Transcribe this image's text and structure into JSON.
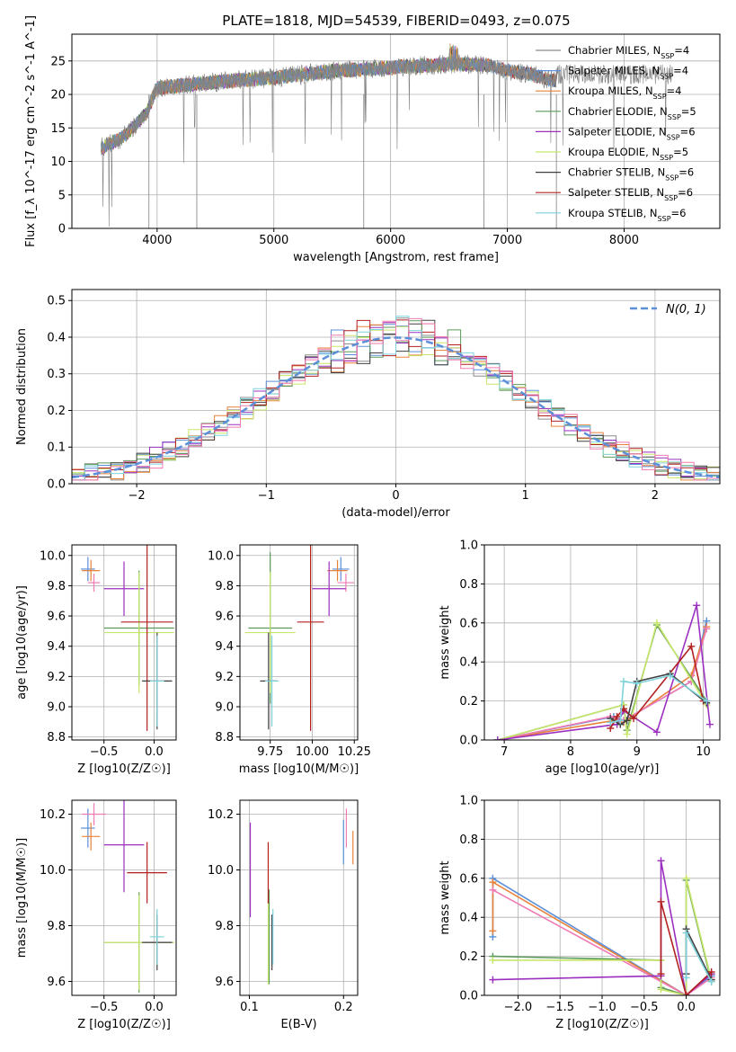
{
  "title": "PLATE=1818, MJD=54539, FIBERID=0493, z=0.075",
  "chart_data": [
    {
      "id": "spectrum",
      "type": "line",
      "xlabel": "wavelength [Angstrom, rest frame]",
      "ylabel": "Flux [f_λ 10^-17 erg cm^-2 s^-1 A^-1]",
      "xlim": [
        3270,
        8820
      ],
      "ylim": [
        0,
        29
      ],
      "xticks": [
        4000,
        5000,
        6000,
        7000,
        8000
      ],
      "yticks": [
        0,
        5,
        10,
        15,
        20,
        25
      ],
      "grid": true,
      "legend_position": "right",
      "legend": [
        {
          "label": "Chabrier MILES, N_SSP=4",
          "color": "#8c8c8c"
        },
        {
          "label": "Salpeter MILES, N_SSP=4",
          "color": "#5b8fd8"
        },
        {
          "label": "Kroupa MILES, N_SSP=4",
          "color": "#e8823a"
        },
        {
          "label": "Chabrier ELODIE, N_SSP=5",
          "color": "#5a9a5a"
        },
        {
          "label": "Salpeter ELODIE, N_SSP=6",
          "color": "#9b30c0"
        },
        {
          "label": "Kroupa ELODIE, N_SSP=5",
          "color": "#c8e66a"
        },
        {
          "label": "Chabrier STELIB, N_SSP=6",
          "color": "#404040"
        },
        {
          "label": "Salpeter STELIB, N_SSP=6",
          "color": "#b22020"
        },
        {
          "label": "Kroupa STELIB, N_SSP=6",
          "color": "#7fd2dc"
        }
      ],
      "spectrum_trend": {
        "x": [
          3520,
          3700,
          3900,
          4000,
          4300,
          4600,
          5000,
          5500,
          6000,
          6500,
          6800,
          7000,
          7200,
          7400
        ],
        "y": [
          12,
          13.5,
          17,
          21,
          21.5,
          22,
          22.5,
          23.5,
          24,
          24.5,
          24.5,
          23.5,
          23,
          22
        ]
      }
    },
    {
      "id": "residuals",
      "type": "line",
      "xlabel": "(data-model)/error",
      "ylabel": "Normed distribution",
      "xlim": [
        -2.5,
        2.5
      ],
      "ylim": [
        0,
        0.53
      ],
      "xticks": [
        -2,
        -1,
        0,
        1,
        2
      ],
      "yticks": [
        0.0,
        0.1,
        0.2,
        0.3,
        0.4,
        0.5
      ],
      "grid": true,
      "legend_position": "top-right",
      "legend_label": "N(0, 1)",
      "gaussian_color": "#5b8fd8"
    },
    {
      "id": "age-vs-z",
      "type": "scatter",
      "xlabel": "Z [log10(Z/Z☉)]",
      "ylabel": "age  [log10(age/yr)]",
      "xlim": [
        -0.82,
        0.22
      ],
      "ylim": [
        8.78,
        10.07
      ],
      "xticks": [
        -0.5,
        0.0
      ],
      "yticks": [
        8.8,
        9.0,
        9.2,
        9.4,
        9.6,
        9.8,
        10.0
      ],
      "grid": true,
      "points": [
        {
          "x": -0.66,
          "y": 9.91,
          "xerr": 0.07,
          "yerr": 0.08,
          "color": "#5b8fd8"
        },
        {
          "x": -0.63,
          "y": 9.9,
          "xerr": 0.09,
          "yerr": 0.07,
          "color": "#e8823a"
        },
        {
          "x": -0.6,
          "y": 9.82,
          "xerr": 0.06,
          "yerr": 0.06,
          "color": "#f07ab4"
        },
        {
          "x": -0.3,
          "y": 9.78,
          "xerr": 0.2,
          "yerr": 0.18,
          "color": "#9b30c0"
        },
        {
          "x": -0.15,
          "y": 9.52,
          "xerr": 0.35,
          "yerr": 0.38,
          "color": "#5a9a5a"
        },
        {
          "x": -0.15,
          "y": 9.49,
          "xerr": 0.35,
          "yerr": 0.4,
          "color": "#c8e66a"
        },
        {
          "x": -0.07,
          "y": 9.56,
          "xerr": 0.26,
          "yerr": 0.72,
          "color": "#b22020"
        },
        {
          "x": 0.03,
          "y": 9.17,
          "xerr": 0.15,
          "yerr": 0.32,
          "color": "#404040"
        },
        {
          "x": 0.03,
          "y": 9.17,
          "xerr": 0.07,
          "yerr": 0.3,
          "color": "#7fd2dc"
        }
      ]
    },
    {
      "id": "age-vs-mass",
      "type": "scatter",
      "xlabel": "mass [log10(M/M☉)]",
      "ylabel": "",
      "xlim": [
        9.57,
        10.27
      ],
      "ylim": [
        8.78,
        10.07
      ],
      "xticks": [
        9.75,
        10.0,
        10.25
      ],
      "yticks": [
        8.8,
        9.0,
        9.2,
        9.4,
        9.6,
        9.8,
        10.0
      ],
      "grid": true,
      "points": [
        {
          "x": 10.17,
          "y": 9.91,
          "xerr": 0.05,
          "yerr": 0.08,
          "color": "#5b8fd8"
        },
        {
          "x": 10.15,
          "y": 9.9,
          "xerr": 0.06,
          "yerr": 0.07,
          "color": "#e8823a"
        },
        {
          "x": 10.2,
          "y": 9.82,
          "xerr": 0.05,
          "yerr": 0.06,
          "color": "#f07ab4"
        },
        {
          "x": 10.1,
          "y": 9.78,
          "xerr": 0.1,
          "yerr": 0.18,
          "color": "#9b30c0"
        },
        {
          "x": 9.75,
          "y": 9.52,
          "xerr": 0.13,
          "yerr": 0.5,
          "color": "#5a9a5a"
        },
        {
          "x": 9.75,
          "y": 9.49,
          "xerr": 0.15,
          "yerr": 0.4,
          "color": "#c8e66a"
        },
        {
          "x": 9.99,
          "y": 9.56,
          "xerr": 0.08,
          "yerr": 0.72,
          "color": "#b22020"
        },
        {
          "x": 9.74,
          "y": 9.17,
          "xerr": 0.05,
          "yerr": 0.32,
          "color": "#404040"
        },
        {
          "x": 9.76,
          "y": 9.17,
          "xerr": 0.04,
          "yerr": 0.3,
          "color": "#7fd2dc"
        }
      ]
    },
    {
      "id": "weight-vs-age",
      "type": "line",
      "xlabel": "age  [log10(age/yr)]",
      "ylabel": "mass weight",
      "xlim": [
        6.7,
        10.25
      ],
      "ylim": [
        0,
        1.0
      ],
      "xticks": [
        7,
        8,
        9,
        10
      ],
      "yticks": [
        0.0,
        0.2,
        0.4,
        0.6,
        0.8,
        1.0
      ],
      "grid": true,
      "series": [
        {
          "color": "#5b8fd8",
          "x": [
            6.9,
            8.65,
            8.8,
            9.82,
            10.05
          ],
          "y": [
            0.0,
            0.12,
            0.1,
            0.3,
            0.61
          ]
        },
        {
          "color": "#e8823a",
          "x": [
            6.9,
            8.65,
            8.8,
            9.82,
            10.05
          ],
          "y": [
            0.0,
            0.1,
            0.09,
            0.33,
            0.58
          ]
        },
        {
          "color": "#f07ab4",
          "x": [
            6.9,
            8.6,
            8.8,
            9.82,
            10.05
          ],
          "y": [
            0.0,
            0.12,
            0.1,
            0.3,
            0.57
          ]
        },
        {
          "color": "#5a9a5a",
          "x": [
            6.9,
            8.8,
            8.85,
            9.3,
            10.05
          ],
          "y": [
            0.0,
            0.18,
            0.05,
            0.59,
            0.2
          ]
        },
        {
          "color": "#c8e66a",
          "x": [
            6.9,
            8.8,
            8.85,
            9.3,
            10.05
          ],
          "y": [
            0.0,
            0.18,
            0.03,
            0.6,
            0.18
          ]
        },
        {
          "color": "#9b30c0",
          "x": [
            6.9,
            8.7,
            8.8,
            9.3,
            9.9,
            10.1
          ],
          "y": [
            0.0,
            0.08,
            0.15,
            0.04,
            0.69,
            0.08
          ]
        },
        {
          "color": "#b22020",
          "x": [
            8.6,
            8.7,
            8.8,
            8.95,
            9.82,
            10.0
          ],
          "y": [
            0.06,
            0.12,
            0.16,
            0.11,
            0.48,
            0.2
          ]
        },
        {
          "color": "#404040",
          "x": [
            8.6,
            8.75,
            8.85,
            9.0,
            9.5,
            10.05
          ],
          "y": [
            0.11,
            0.08,
            0.1,
            0.3,
            0.34,
            0.19
          ]
        },
        {
          "color": "#7fd2dc",
          "x": [
            8.6,
            8.75,
            8.8,
            9.0,
            9.5,
            10.05
          ],
          "y": [
            0.09,
            0.1,
            0.3,
            0.29,
            0.33,
            0.2
          ]
        }
      ]
    },
    {
      "id": "mass-vs-z",
      "type": "scatter",
      "xlabel": "Z [log10(Z/Z☉)]",
      "ylabel": "mass [log10(M/M☉)]",
      "xlim": [
        -0.82,
        0.22
      ],
      "ylim": [
        9.55,
        10.25
      ],
      "xticks": [
        -0.5,
        0.0
      ],
      "yticks": [
        9.6,
        9.8,
        10.0,
        10.2
      ],
      "grid": true,
      "points": [
        {
          "x": -0.66,
          "y": 10.15,
          "xerr": 0.07,
          "yerr": 0.07,
          "color": "#5b8fd8"
        },
        {
          "x": -0.63,
          "y": 10.12,
          "xerr": 0.09,
          "yerr": 0.05,
          "color": "#e8823a"
        },
        {
          "x": -0.6,
          "y": 10.2,
          "xerr": 0.12,
          "yerr": 0.04,
          "color": "#f07ab4"
        },
        {
          "x": -0.3,
          "y": 10.09,
          "xerr": 0.2,
          "yerr": 0.17,
          "color": "#9b30c0"
        },
        {
          "x": -0.15,
          "y": 9.74,
          "xerr": 0.35,
          "yerr": 0.18,
          "color": "#5a9a5a"
        },
        {
          "x": -0.15,
          "y": 9.74,
          "xerr": 0.35,
          "yerr": 0.17,
          "color": "#c8e66a"
        },
        {
          "x": -0.07,
          "y": 9.99,
          "xerr": 0.2,
          "yerr": 0.11,
          "color": "#b22020"
        },
        {
          "x": 0.03,
          "y": 9.74,
          "xerr": 0.15,
          "yerr": 0.1,
          "color": "#404040"
        },
        {
          "x": 0.03,
          "y": 9.76,
          "xerr": 0.07,
          "yerr": 0.1,
          "color": "#7fd2dc"
        }
      ]
    },
    {
      "id": "mass-vs-ebv",
      "type": "scatter",
      "xlabel": "E(B-V)",
      "ylabel": "",
      "xlim": [
        0.09,
        0.215
      ],
      "ylim": [
        9.55,
        10.25
      ],
      "xticks": [
        0.1,
        0.2
      ],
      "yticks": [
        9.6,
        9.8,
        10.0,
        10.2
      ],
      "grid": true,
      "points": [
        {
          "x": 0.2,
          "y": 10.1,
          "xerr": 0,
          "yerr": 0.08,
          "color": "#5b8fd8"
        },
        {
          "x": 0.21,
          "y": 10.08,
          "xerr": 0,
          "yerr": 0.06,
          "color": "#e8823a"
        },
        {
          "x": 0.203,
          "y": 10.15,
          "xerr": 0,
          "yerr": 0.07,
          "color": "#f07ab4"
        },
        {
          "x": 0.101,
          "y": 10.0,
          "xerr": 0,
          "yerr": 0.17,
          "color": "#9b30c0"
        },
        {
          "x": 0.121,
          "y": 9.76,
          "xerr": 0,
          "yerr": 0.17,
          "color": "#5a9a5a"
        },
        {
          "x": 0.12,
          "y": 9.75,
          "xerr": 0,
          "yerr": 0.16,
          "color": "#c8e66a"
        },
        {
          "x": 0.12,
          "y": 9.99,
          "xerr": 0,
          "yerr": 0.11,
          "color": "#b22020"
        },
        {
          "x": 0.124,
          "y": 9.74,
          "xerr": 0,
          "yerr": 0.1,
          "color": "#404040"
        },
        {
          "x": 0.125,
          "y": 9.76,
          "xerr": 0,
          "yerr": 0.1,
          "color": "#7fd2dc"
        }
      ]
    },
    {
      "id": "weight-vs-z",
      "type": "line",
      "xlabel": "Z [log10(Z/Z☉)]",
      "ylabel": "mass weight",
      "xlim": [
        -2.4,
        0.4
      ],
      "ylim": [
        0,
        1.0
      ],
      "xticks": [
        -2.0,
        -1.5,
        -1.0,
        -0.5,
        0.0
      ],
      "yticks": [
        0.0,
        0.2,
        0.4,
        0.6,
        0.8,
        1.0
      ],
      "grid": true,
      "series": [
        {
          "color": "#5b8fd8",
          "x": [
            -2.3,
            -2.3,
            0.0,
            0.3
          ],
          "y": [
            0.3,
            0.6,
            0.0,
            0.1
          ]
        },
        {
          "color": "#e8823a",
          "x": [
            -2.3,
            -2.3,
            0.0,
            0.3
          ],
          "y": [
            0.33,
            0.58,
            0.0,
            0.11
          ]
        },
        {
          "color": "#f07ab4",
          "x": [
            -2.3,
            0.0,
            0.3
          ],
          "y": [
            0.54,
            0.0,
            0.09
          ]
        },
        {
          "color": "#5a9a5a",
          "x": [
            -2.3,
            -0.3,
            -0.3,
            0.0,
            0.0,
            0.3
          ],
          "y": [
            0.2,
            0.18,
            0.04,
            0.0,
            0.59,
            0.07
          ]
        },
        {
          "color": "#c8e66a",
          "x": [
            -2.3,
            -0.3,
            -0.3,
            0.0,
            0.0,
            0.3
          ],
          "y": [
            0.18,
            0.18,
            0.03,
            0.0,
            0.6,
            0.08
          ]
        },
        {
          "color": "#9b30c0",
          "x": [
            -2.3,
            -0.3,
            -0.3,
            0.0,
            0.3
          ],
          "y": [
            0.08,
            0.1,
            0.69,
            0.0,
            0.11
          ]
        },
        {
          "color": "#b22020",
          "x": [
            -0.3,
            -0.3,
            0.0,
            0.3
          ],
          "y": [
            0.11,
            0.48,
            0.0,
            0.12
          ]
        },
        {
          "color": "#404040",
          "x": [
            0.0,
            0.0,
            0.3
          ],
          "y": [
            0.11,
            0.34,
            0.08
          ]
        },
        {
          "color": "#7fd2dc",
          "x": [
            0.0,
            0.0,
            0.3
          ],
          "y": [
            0.09,
            0.32,
            0.07
          ]
        }
      ]
    }
  ]
}
